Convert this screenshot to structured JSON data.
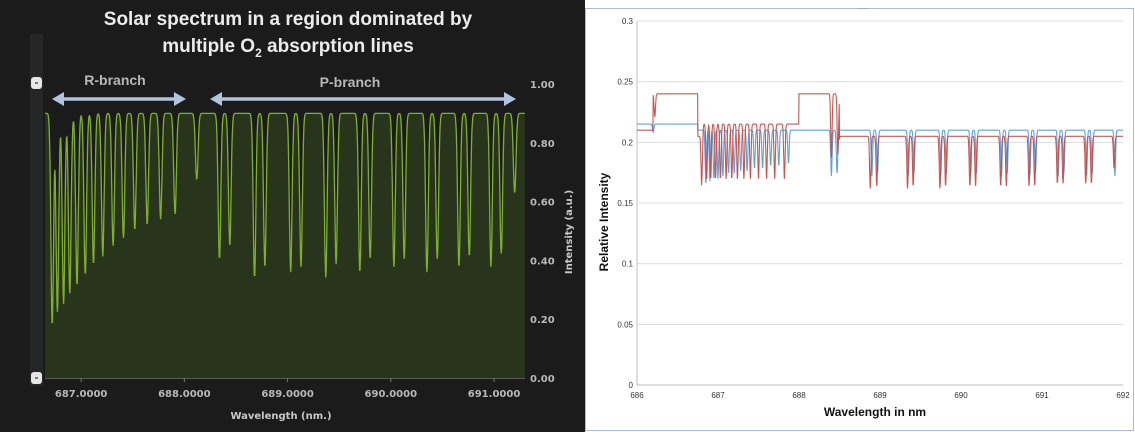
{
  "colors": {
    "left_background": "#1b1b1b",
    "left_line": "#7fae33",
    "left_fill": "#2a3a1c",
    "right_blue": "#5b9bd5",
    "right_red": "#c0504d",
    "arrow": "#b0c4de"
  },
  "left_chart": {
    "title_line1": "Solar spectrum in a region dominated by",
    "title_line2_pre": "multiple O",
    "title_line2_sub": "2",
    "title_line2_post": " absorption lines",
    "xlabel": "Wavelength (nm.)",
    "ylabel": "Intensity (a.u.)",
    "x_ticks": [
      "687.0000",
      "688.0000",
      "689.0000",
      "690.0000",
      "691.0000"
    ],
    "y_ticks": [
      "0.00",
      "0.20",
      "0.40",
      "0.60",
      "0.80",
      "1.00"
    ],
    "annotations": {
      "r_branch": "R-branch",
      "p_branch": "P-branch"
    }
  },
  "right_chart": {
    "xlabel": "Wavelength in nm",
    "ylabel": "Relative Intensity",
    "x_ticks": [
      "686",
      "687",
      "688",
      "689",
      "690",
      "691",
      "692"
    ],
    "y_ticks": [
      "0",
      "0.05",
      "0.1",
      "0.15",
      "0.2",
      "0.25",
      "0.3"
    ]
  },
  "chart_data": [
    {
      "type": "area",
      "title": "Solar spectrum in a region dominated by multiple O2 absorption lines",
      "xlabel": "Wavelength (nm.)",
      "ylabel": "Intensity (a.u.)",
      "xlim": [
        686.65,
        691.3
      ],
      "ylim": [
        0,
        1.0
      ],
      "grid": false,
      "legend": "none",
      "series": [
        {
          "baseline": 0.9,
          "absorption_lines": [
            {
              "x": 686.72,
              "depth": 0.8
            },
            {
              "x": 686.77,
              "depth": 0.75
            },
            {
              "x": 686.83,
              "depth": 0.72
            },
            {
              "x": 686.89,
              "depth": 0.68
            },
            {
              "x": 686.96,
              "depth": 0.65
            },
            {
              "x": 687.04,
              "depth": 0.61
            },
            {
              "x": 687.12,
              "depth": 0.57
            },
            {
              "x": 687.21,
              "depth": 0.54
            },
            {
              "x": 687.31,
              "depth": 0.5
            },
            {
              "x": 687.41,
              "depth": 0.47
            },
            {
              "x": 687.52,
              "depth": 0.44
            },
            {
              "x": 687.64,
              "depth": 0.42
            },
            {
              "x": 687.77,
              "depth": 0.4
            },
            {
              "x": 687.91,
              "depth": 0.38
            },
            {
              "x": 688.12,
              "depth": 0.25
            },
            {
              "x": 688.34,
              "depth": 0.55
            },
            {
              "x": 688.44,
              "depth": 0.5
            },
            {
              "x": 688.68,
              "depth": 0.62
            },
            {
              "x": 688.78,
              "depth": 0.58
            },
            {
              "x": 689.03,
              "depth": 0.6
            },
            {
              "x": 689.13,
              "depth": 0.58
            },
            {
              "x": 689.37,
              "depth": 0.62
            },
            {
              "x": 689.47,
              "depth": 0.57
            },
            {
              "x": 689.7,
              "depth": 0.6
            },
            {
              "x": 689.8,
              "depth": 0.55
            },
            {
              "x": 690.03,
              "depth": 0.58
            },
            {
              "x": 690.13,
              "depth": 0.55
            },
            {
              "x": 690.35,
              "depth": 0.6
            },
            {
              "x": 690.45,
              "depth": 0.55
            },
            {
              "x": 690.66,
              "depth": 0.58
            },
            {
              "x": 690.76,
              "depth": 0.54
            },
            {
              "x": 690.97,
              "depth": 0.58
            },
            {
              "x": 691.07,
              "depth": 0.53
            },
            {
              "x": 691.2,
              "depth": 0.3
            }
          ]
        }
      ]
    },
    {
      "type": "line",
      "xlabel": "Wavelength in nm",
      "ylabel": "Relative Intensity",
      "xlim": [
        686,
        692
      ],
      "ylim": [
        0,
        0.3
      ],
      "grid": true,
      "legend": "none",
      "series": [
        {
          "color": "#5b9bd5",
          "baseline_segments": [
            {
              "x": [
                686.0,
                686.75
              ],
              "y": 0.215
            },
            {
              "x": [
                686.75,
                692.0
              ],
              "y": 0.21
            }
          ],
          "absorption_lines": [
            {
              "x": 686.2,
              "depth": 0.03
            },
            {
              "x": 686.85,
              "depth": 0.21
            },
            {
              "x": 686.9,
              "depth": 0.2
            },
            {
              "x": 686.95,
              "depth": 0.19
            },
            {
              "x": 687.0,
              "depth": 0.19
            },
            {
              "x": 687.06,
              "depth": 0.18
            },
            {
              "x": 687.13,
              "depth": 0.17
            },
            {
              "x": 687.2,
              "depth": 0.17
            },
            {
              "x": 687.28,
              "depth": 0.16
            },
            {
              "x": 687.36,
              "depth": 0.16
            },
            {
              "x": 687.45,
              "depth": 0.15
            },
            {
              "x": 687.55,
              "depth": 0.15
            },
            {
              "x": 687.65,
              "depth": 0.14
            },
            {
              "x": 687.75,
              "depth": 0.14
            },
            {
              "x": 687.87,
              "depth": 0.13
            },
            {
              "x": 688.4,
              "depth": 0.18
            },
            {
              "x": 688.47,
              "depth": 0.17
            },
            {
              "x": 688.9,
              "depth": 0.18
            },
            {
              "x": 688.97,
              "depth": 0.17
            },
            {
              "x": 689.35,
              "depth": 0.18
            },
            {
              "x": 689.42,
              "depth": 0.17
            },
            {
              "x": 689.75,
              "depth": 0.18
            },
            {
              "x": 689.82,
              "depth": 0.17
            },
            {
              "x": 690.12,
              "depth": 0.18
            },
            {
              "x": 690.19,
              "depth": 0.17
            },
            {
              "x": 690.5,
              "depth": 0.18
            },
            {
              "x": 690.57,
              "depth": 0.17
            },
            {
              "x": 690.85,
              "depth": 0.18
            },
            {
              "x": 690.92,
              "depth": 0.17
            },
            {
              "x": 691.2,
              "depth": 0.18
            },
            {
              "x": 691.27,
              "depth": 0.17
            },
            {
              "x": 691.55,
              "depth": 0.18
            },
            {
              "x": 691.62,
              "depth": 0.17
            },
            {
              "x": 691.9,
              "depth": 0.18
            }
          ]
        },
        {
          "color": "#c0504d",
          "baseline_segments": [
            {
              "x": [
                686.0,
                686.2
              ],
              "y": 0.21
            },
            {
              "x": [
                686.2,
                686.75
              ],
              "y": 0.24
            },
            {
              "x": [
                686.8,
                688.0
              ],
              "y": 0.215
            },
            {
              "x": [
                688.0,
                688.5
              ],
              "y": 0.24
            },
            {
              "x": [
                688.5,
                692.0
              ],
              "y": 0.205
            }
          ],
          "absorption_lines": [
            {
              "x": 686.22,
              "depth": 0.08
            },
            {
              "x": 686.8,
              "depth": 0.22
            },
            {
              "x": 686.86,
              "depth": 0.21
            },
            {
              "x": 686.91,
              "depth": 0.21
            },
            {
              "x": 686.97,
              "depth": 0.21
            },
            {
              "x": 687.03,
              "depth": 0.21
            },
            {
              "x": 687.1,
              "depth": 0.21
            },
            {
              "x": 687.17,
              "depth": 0.21
            },
            {
              "x": 687.24,
              "depth": 0.21
            },
            {
              "x": 687.32,
              "depth": 0.21
            },
            {
              "x": 687.4,
              "depth": 0.21
            },
            {
              "x": 687.5,
              "depth": 0.21
            },
            {
              "x": 687.6,
              "depth": 0.21
            },
            {
              "x": 687.7,
              "depth": 0.21
            },
            {
              "x": 687.82,
              "depth": 0.21
            },
            {
              "x": 688.4,
              "depth": 0.22
            },
            {
              "x": 688.48,
              "depth": 0.21
            },
            {
              "x": 688.88,
              "depth": 0.21
            },
            {
              "x": 688.96,
              "depth": 0.2
            },
            {
              "x": 689.34,
              "depth": 0.21
            },
            {
              "x": 689.41,
              "depth": 0.2
            },
            {
              "x": 689.74,
              "depth": 0.21
            },
            {
              "x": 689.81,
              "depth": 0.2
            },
            {
              "x": 690.11,
              "depth": 0.2
            },
            {
              "x": 690.18,
              "depth": 0.2
            },
            {
              "x": 690.49,
              "depth": 0.2
            },
            {
              "x": 690.56,
              "depth": 0.2
            },
            {
              "x": 690.84,
              "depth": 0.2
            },
            {
              "x": 690.91,
              "depth": 0.2
            },
            {
              "x": 691.19,
              "depth": 0.19
            },
            {
              "x": 691.26,
              "depth": 0.19
            },
            {
              "x": 691.54,
              "depth": 0.19
            },
            {
              "x": 691.61,
              "depth": 0.19
            },
            {
              "x": 691.89,
              "depth": 0.13
            }
          ]
        }
      ]
    }
  ]
}
